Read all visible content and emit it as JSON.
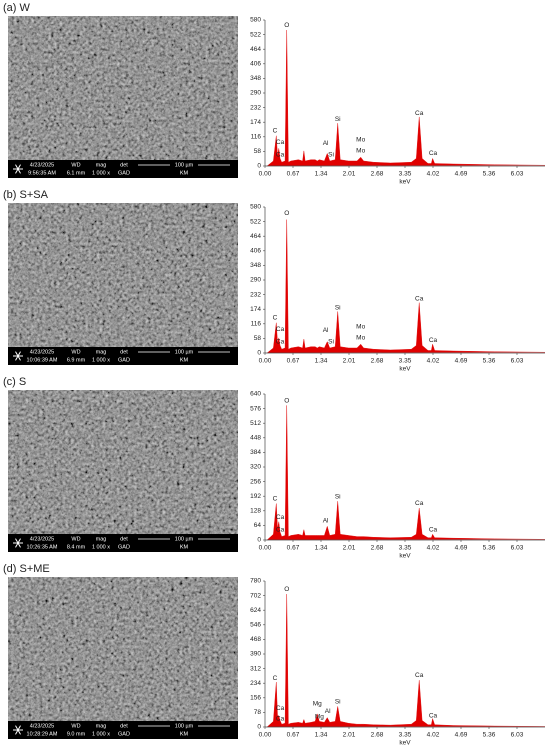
{
  "panels": [
    {
      "label": "(a)  W",
      "sem": {
        "date": "4/23/2025",
        "time": "9:56:35 AM",
        "wd_label": "WD",
        "wd": "6.1 mm",
        "mag_label": "mag",
        "mag": "1 000 x",
        "det_label": "det",
        "det": "GAD",
        "scale": "100 µm",
        "operator": "KM"
      }
    },
    {
      "label": "(b)  S+SA",
      "sem": {
        "date": "4/23/2025",
        "time": "10:06:39 AM",
        "wd_label": "WD",
        "wd": "6.9 mm",
        "mag_label": "mag",
        "mag": "1 000 x",
        "det_label": "det",
        "det": "GAD",
        "scale": "100 µm",
        "operator": "KM"
      }
    },
    {
      "label": "(c)  S",
      "sem": {
        "date": "4/23/2025",
        "time": "10:26:35 AM",
        "wd_label": "WD",
        "wd": "8.4 mm",
        "mag_label": "mag",
        "mag": "1 000 x",
        "det_label": "det",
        "det": "GAD",
        "scale": "100 µm",
        "operator": "KM"
      }
    },
    {
      "label": "(d)  S+ME",
      "sem": {
        "date": "4/23/2025",
        "time": "10:28:29 AM",
        "wd_label": "WD",
        "wd": "9.0 mm",
        "mag_label": "mag",
        "mag": "1 000 x",
        "det_label": "det",
        "det": "GAD",
        "scale": "100 µm",
        "operator": "KM"
      }
    }
  ],
  "chart_data": [
    {
      "type": "area",
      "xlabel": "keV",
      "color": "#e00000",
      "x": [
        0.05,
        0.2,
        0.27,
        0.3,
        0.33,
        0.36,
        0.4,
        0.48,
        0.52,
        0.56,
        0.62,
        0.8,
        0.9,
        0.93,
        0.96,
        1.1,
        1.2,
        1.25,
        1.3,
        1.42,
        1.49,
        1.55,
        1.68,
        1.74,
        1.8,
        2.0,
        2.2,
        2.29,
        2.36,
        2.6,
        3.0,
        3.5,
        3.62,
        3.69,
        3.76,
        3.9,
        3.98,
        4.01,
        4.06,
        4.5,
        5.5,
        6.7
      ],
      "values": [
        0,
        20,
        120,
        40,
        70,
        30,
        15,
        20,
        540,
        15,
        20,
        25,
        20,
        60,
        20,
        25,
        25,
        20,
        25,
        20,
        50,
        20,
        25,
        170,
        25,
        20,
        20,
        35,
        20,
        15,
        12,
        15,
        30,
        195,
        30,
        10,
        10,
        30,
        10,
        8,
        5,
        3
      ],
      "xlim": [
        0,
        6.7
      ],
      "ylim": [
        0,
        580
      ],
      "xticks": [
        {
          "value": 0,
          "label": "0.00"
        },
        0.67,
        1.34,
        2.01,
        2.68,
        3.35,
        4.02,
        4.69,
        5.36,
        6.03
      ],
      "yticks": [
        0,
        58,
        116,
        174,
        232,
        290,
        348,
        406,
        464,
        522,
        580
      ],
      "annotations": [
        {
          "text": "O",
          "x": 0.52,
          "y": 560
        },
        {
          "text": "C",
          "x": 0.24,
          "y": 140
        },
        {
          "text": "Ca",
          "x": 0.36,
          "y": 95
        },
        {
          "text": "Ca",
          "x": 0.36,
          "y": 45
        },
        {
          "text": "Al",
          "x": 1.45,
          "y": 90
        },
        {
          "text": "Si",
          "x": 1.58,
          "y": 45
        },
        {
          "text": "Si",
          "x": 1.74,
          "y": 185
        },
        {
          "text": "Mo",
          "x": 2.29,
          "y": 105
        },
        {
          "text": "Mo",
          "x": 2.29,
          "y": 60
        },
        {
          "text": "Ca",
          "x": 3.69,
          "y": 210
        },
        {
          "text": "Ca",
          "x": 4.02,
          "y": 50
        }
      ]
    },
    {
      "type": "area",
      "xlabel": "keV",
      "color": "#e00000",
      "x": [
        0.05,
        0.2,
        0.27,
        0.3,
        0.33,
        0.36,
        0.4,
        0.48,
        0.52,
        0.56,
        0.62,
        0.8,
        0.9,
        0.93,
        0.96,
        1.1,
        1.2,
        1.25,
        1.3,
        1.42,
        1.49,
        1.55,
        1.68,
        1.74,
        1.8,
        2.0,
        2.2,
        2.29,
        2.36,
        2.6,
        3.0,
        3.5,
        3.62,
        3.69,
        3.76,
        3.9,
        3.98,
        4.01,
        4.06,
        4.5,
        5.5,
        6.7
      ],
      "values": [
        0,
        20,
        120,
        40,
        60,
        30,
        15,
        20,
        530,
        15,
        20,
        25,
        20,
        55,
        20,
        25,
        25,
        20,
        25,
        20,
        45,
        20,
        25,
        165,
        25,
        20,
        20,
        35,
        20,
        15,
        12,
        15,
        30,
        200,
        30,
        10,
        10,
        35,
        10,
        8,
        5,
        3
      ],
      "xlim": [
        0,
        6.7
      ],
      "ylim": [
        0,
        580
      ],
      "xticks": [
        {
          "value": 0,
          "label": "0.00"
        },
        0.67,
        1.34,
        2.01,
        2.68,
        3.35,
        4.02,
        4.69,
        5.36,
        6.03
      ],
      "yticks": [
        0,
        58,
        116,
        174,
        232,
        290,
        348,
        406,
        464,
        522,
        580
      ],
      "annotations": [
        {
          "text": "O",
          "x": 0.52,
          "y": 555
        },
        {
          "text": "C",
          "x": 0.24,
          "y": 140
        },
        {
          "text": "Ca",
          "x": 0.36,
          "y": 95
        },
        {
          "text": "Ca",
          "x": 0.36,
          "y": 45
        },
        {
          "text": "Al",
          "x": 1.45,
          "y": 90
        },
        {
          "text": "Si",
          "x": 1.58,
          "y": 45
        },
        {
          "text": "Si",
          "x": 1.74,
          "y": 180
        },
        {
          "text": "Mo",
          "x": 2.29,
          "y": 105
        },
        {
          "text": "Mo",
          "x": 2.29,
          "y": 60
        },
        {
          "text": "Ca",
          "x": 3.69,
          "y": 215
        },
        {
          "text": "Ca",
          "x": 4.02,
          "y": 50
        }
      ]
    },
    {
      "type": "area",
      "xlabel": "keV",
      "color": "#e00000",
      "x": [
        0.05,
        0.2,
        0.27,
        0.3,
        0.33,
        0.36,
        0.4,
        0.48,
        0.52,
        0.56,
        0.62,
        0.8,
        0.9,
        0.93,
        0.96,
        1.1,
        1.2,
        1.25,
        1.3,
        1.42,
        1.49,
        1.55,
        1.68,
        1.74,
        1.8,
        2.0,
        2.2,
        2.29,
        2.36,
        2.6,
        3.0,
        3.5,
        3.62,
        3.69,
        3.76,
        3.9,
        3.98,
        4.01,
        4.06,
        4.5,
        5.5,
        6.7
      ],
      "values": [
        0,
        25,
        160,
        50,
        80,
        35,
        15,
        20,
        590,
        15,
        20,
        25,
        20,
        45,
        20,
        20,
        20,
        20,
        20,
        20,
        60,
        20,
        25,
        170,
        25,
        20,
        15,
        15,
        15,
        12,
        10,
        12,
        25,
        140,
        25,
        10,
        10,
        25,
        10,
        8,
        5,
        3
      ],
      "xlim": [
        0,
        6.7
      ],
      "ylim": [
        0,
        640
      ],
      "xticks": [
        {
          "value": 0,
          "label": "0.00"
        },
        0.67,
        1.34,
        2.01,
        2.68,
        3.35,
        4.02,
        4.69,
        5.36,
        6.03
      ],
      "yticks": [
        0,
        64,
        128,
        192,
        256,
        320,
        384,
        448,
        512,
        576,
        640
      ],
      "annotations": [
        {
          "text": "O",
          "x": 0.52,
          "y": 610
        },
        {
          "text": "C",
          "x": 0.24,
          "y": 180
        },
        {
          "text": "Ca",
          "x": 0.36,
          "y": 100
        },
        {
          "text": "Ca",
          "x": 0.36,
          "y": 45
        },
        {
          "text": "Al",
          "x": 1.45,
          "y": 85
        },
        {
          "text": "Si",
          "x": 1.74,
          "y": 190
        },
        {
          "text": "Ca",
          "x": 3.69,
          "y": 160
        },
        {
          "text": "Ca",
          "x": 4.02,
          "y": 45
        }
      ]
    },
    {
      "type": "area",
      "xlabel": "keV",
      "color": "#e00000",
      "x": [
        0.05,
        0.2,
        0.27,
        0.3,
        0.33,
        0.36,
        0.4,
        0.48,
        0.52,
        0.56,
        0.62,
        0.8,
        0.9,
        0.93,
        0.96,
        1.1,
        1.2,
        1.25,
        1.3,
        1.42,
        1.49,
        1.55,
        1.68,
        1.74,
        1.8,
        2.0,
        2.2,
        2.29,
        2.36,
        2.6,
        3.0,
        3.5,
        3.62,
        3.69,
        3.76,
        3.9,
        3.98,
        4.01,
        4.06,
        4.5,
        5.5,
        6.7
      ],
      "values": [
        0,
        30,
        240,
        60,
        60,
        35,
        15,
        20,
        710,
        15,
        20,
        25,
        20,
        40,
        20,
        25,
        30,
        70,
        30,
        25,
        50,
        25,
        30,
        110,
        30,
        20,
        15,
        15,
        15,
        12,
        10,
        15,
        35,
        250,
        35,
        12,
        12,
        45,
        12,
        8,
        5,
        3
      ],
      "xlim": [
        0,
        6.7
      ],
      "ylim": [
        0,
        780
      ],
      "xticks": [
        {
          "value": 0,
          "label": "0.00"
        },
        0.67,
        1.34,
        2.01,
        2.68,
        3.35,
        4.02,
        4.69,
        5.36,
        6.03
      ],
      "yticks": [
        0,
        78,
        156,
        234,
        312,
        390,
        468,
        546,
        624,
        702,
        780
      ],
      "annotations": [
        {
          "text": "O",
          "x": 0.52,
          "y": 735
        },
        {
          "text": "C",
          "x": 0.24,
          "y": 260
        },
        {
          "text": "Ca",
          "x": 0.36,
          "y": 100
        },
        {
          "text": "Ca",
          "x": 0.36,
          "y": 45
        },
        {
          "text": "Mg",
          "x": 1.25,
          "y": 125
        },
        {
          "text": "Mg",
          "x": 1.3,
          "y": 55
        },
        {
          "text": "Al",
          "x": 1.5,
          "y": 85
        },
        {
          "text": "Si",
          "x": 1.74,
          "y": 135
        },
        {
          "text": "Ca",
          "x": 3.69,
          "y": 275
        },
        {
          "text": "Ca",
          "x": 4.02,
          "y": 60
        }
      ]
    }
  ]
}
